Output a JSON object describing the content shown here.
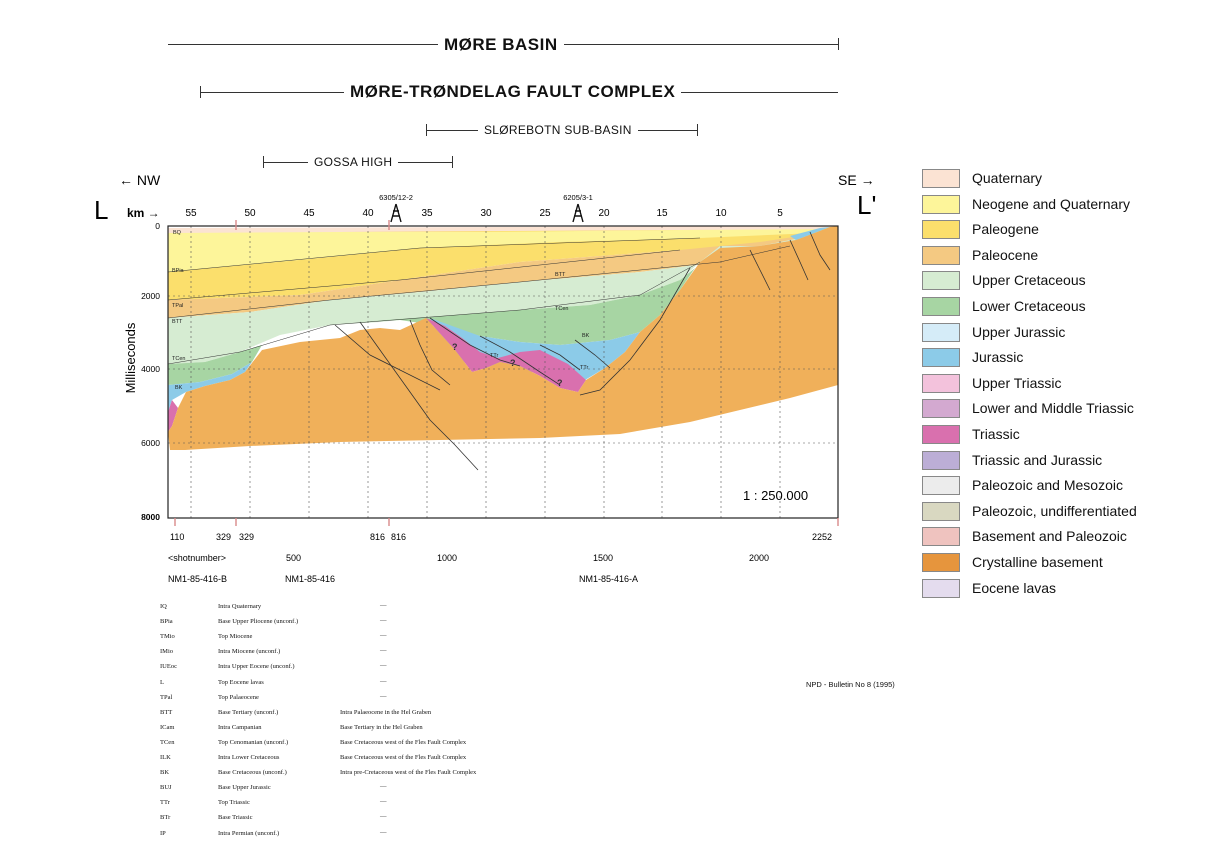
{
  "header": {
    "more_basin": "MØRE BASIN",
    "fault_complex": "MØRE-TRØNDELAG FAULT COMPLEX",
    "sub_basin": "SLØREBOTN SUB-BASIN",
    "gossa_high": "GOSSA HIGH"
  },
  "section": {
    "left_end": "L",
    "right_end": "L'",
    "nw": "← NW",
    "se": "SE →",
    "km_label": "km →",
    "km_ticks": [
      "55",
      "50",
      "45",
      "40",
      "35",
      "30",
      "25",
      "20",
      "15",
      "10",
      "5"
    ],
    "wells": [
      "6305/12-2",
      "6205/3-1"
    ],
    "y_axis_label": "Milliseconds",
    "y_ticks": [
      "0",
      "2000",
      "4000",
      "6000",
      "8000"
    ],
    "scale": "1 : 250.000",
    "horizon_tags": [
      "BQ",
      "BPia",
      "TPal",
      "BTT",
      "TCen",
      "BK",
      "BTT",
      "TCen",
      "BK",
      "TTr",
      "TTr"
    ],
    "question_marks": [
      "?",
      "?",
      "?"
    ],
    "shotpoints_top": [
      "110",
      "329",
      "329",
      "816",
      "816",
      "2252"
    ],
    "shotnumber_label": "<shotnumber>",
    "shotnumber_ticks": [
      "500",
      "1000",
      "1500",
      "2000"
    ],
    "lines": [
      "NM1-85-416-B",
      "NM1-85-416",
      "NM1-85-416-A"
    ]
  },
  "legend": [
    {
      "label": "Quaternary",
      "color": "#fbe3d3"
    },
    {
      "label": "Neogene and Quaternary",
      "color": "#fdf59a"
    },
    {
      "label": "Paleogene",
      "color": "#fbdf6c"
    },
    {
      "label": "Paleocene",
      "color": "#f4c982"
    },
    {
      "label": "Upper Cretaceous",
      "color": "#d6ecd2"
    },
    {
      "label": "Lower Cretaceous",
      "color": "#a7d5a3"
    },
    {
      "label": "Upper Jurassic",
      "color": "#d5ecf8"
    },
    {
      "label": "Jurassic",
      "color": "#8ccbe8"
    },
    {
      "label": "Upper Triassic",
      "color": "#f3c2dc"
    },
    {
      "label": "Lower and Middle Triassic",
      "color": "#d3a9d0"
    },
    {
      "label": "Triassic",
      "color": "#d970ae"
    },
    {
      "label": "Triassic and Jurassic",
      "color": "#bcaed6"
    },
    {
      "label": "Paleozoic and Mesozoic",
      "color": "#ececec"
    },
    {
      "label": "Paleozoic, undifferentiated",
      "color": "#d9d8c1"
    },
    {
      "label": "Basement and Paleozoic",
      "color": "#efc3bf"
    },
    {
      "label": "Crystalline basement",
      "color": "#e6953d"
    },
    {
      "label": "Eocene lavas",
      "color": "#e4dcee"
    }
  ],
  "source": "NPD - Bulletin No 8 (1995)",
  "horizons": [
    {
      "code": "IQ",
      "desc": "Intra Quaternary",
      "note": "",
      "dash": "—"
    },
    {
      "code": "BPia",
      "desc": "Base Upper Pliocene (unconf.)",
      "note": "",
      "dash": "—"
    },
    {
      "code": "TMio",
      "desc": "Top Miocene",
      "note": "",
      "dash": "—"
    },
    {
      "code": "IMio",
      "desc": "Intra Miocene (unconf.)",
      "note": "",
      "dash": "—"
    },
    {
      "code": "IUEoc",
      "desc": "Intra Upper Eocene (unconf.)",
      "note": "",
      "dash": "—"
    },
    {
      "code": "L",
      "desc": "Top Eocene lavas",
      "note": "",
      "dash": "—"
    },
    {
      "code": "TPal",
      "desc": "Top Palaeocene",
      "note": "",
      "dash": "—"
    },
    {
      "code": "BTT",
      "desc": "Base Tertiary (unconf.)",
      "note": "Intra Palaeocene in the Hel Graben",
      "dash": ""
    },
    {
      "code": "ICam",
      "desc": "Intra Campanian",
      "note": "Base Tertiary in the Hel Graben",
      "dash": ""
    },
    {
      "code": "TCen",
      "desc": "Top Cenomanian (unconf.)",
      "note": "Base Cretaceous west of the Fles Fault Complex",
      "dash": ""
    },
    {
      "code": "ILK",
      "desc": "Intra Lower Cretaceous",
      "note": "Base Cretaceous west of the Fles Fault Complex",
      "dash": ""
    },
    {
      "code": "BK",
      "desc": "Base Cretaceous (unconf.)",
      "note": "Intra pre-Cretaceous west of the Fles Fault Complex",
      "dash": ""
    },
    {
      "code": "BUJ",
      "desc": "Base Upper Jurassic",
      "note": "",
      "dash": "—"
    },
    {
      "code": "TTr",
      "desc": "Top Triassic",
      "note": "",
      "dash": "—"
    },
    {
      "code": "BTr",
      "desc": "Base Triassic",
      "note": "",
      "dash": "—"
    },
    {
      "code": "IP",
      "desc": "Intra Permian (unconf.)",
      "note": "",
      "dash": "—"
    }
  ]
}
